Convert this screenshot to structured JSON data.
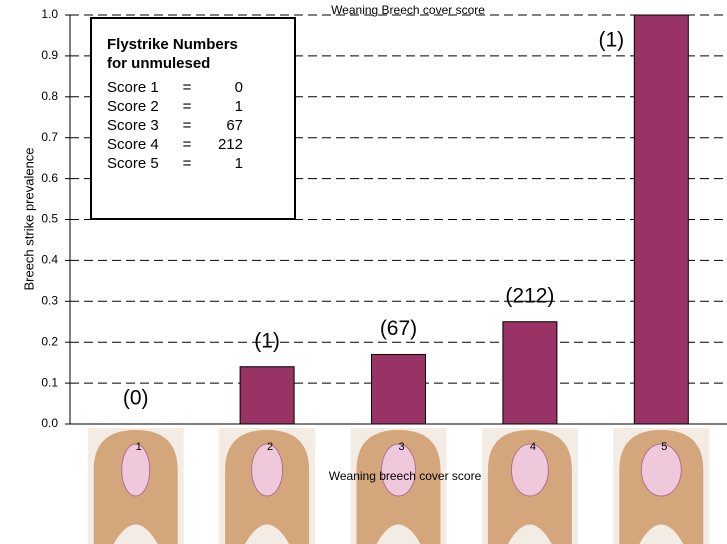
{
  "chart_data": {
    "type": "bar",
    "title": "Weaning Breech cover score",
    "x_label": "Weaning breech cover score",
    "y_label": "Breech strike prevalence",
    "categories": [
      "1",
      "2",
      "3",
      "4",
      "5"
    ],
    "values": [
      0,
      0.14,
      0.17,
      0.25,
      1.0
    ],
    "count_labels": [
      "(0)",
      "(1)",
      "(67)",
      "(212)",
      "(1)"
    ],
    "color": "#993366",
    "ylim": [
      0,
      1.0
    ],
    "yticks": [
      {
        "value": 0,
        "label": "0.0"
      },
      0.1,
      0.2,
      0.3,
      0.4,
      0.5,
      0.6,
      0.7,
      0.8,
      0.9,
      {
        "value": 1.0,
        "label": "1.0"
      }
    ],
    "grid": true,
    "inset": {
      "title_lines": [
        "Flystrike Numbers",
        "for unmulesed"
      ],
      "rows": [
        {
          "label": "Score 1",
          "sign": "=",
          "value": "0"
        },
        {
          "label": "Score 2",
          "sign": "=",
          "value": "1"
        },
        {
          "label": "Score 3",
          "sign": "=",
          "value": "67"
        },
        {
          "label": "Score 4",
          "sign": "=",
          "value": "212"
        },
        {
          "label": "Score 5",
          "sign": "=",
          "value": "1"
        }
      ]
    }
  }
}
